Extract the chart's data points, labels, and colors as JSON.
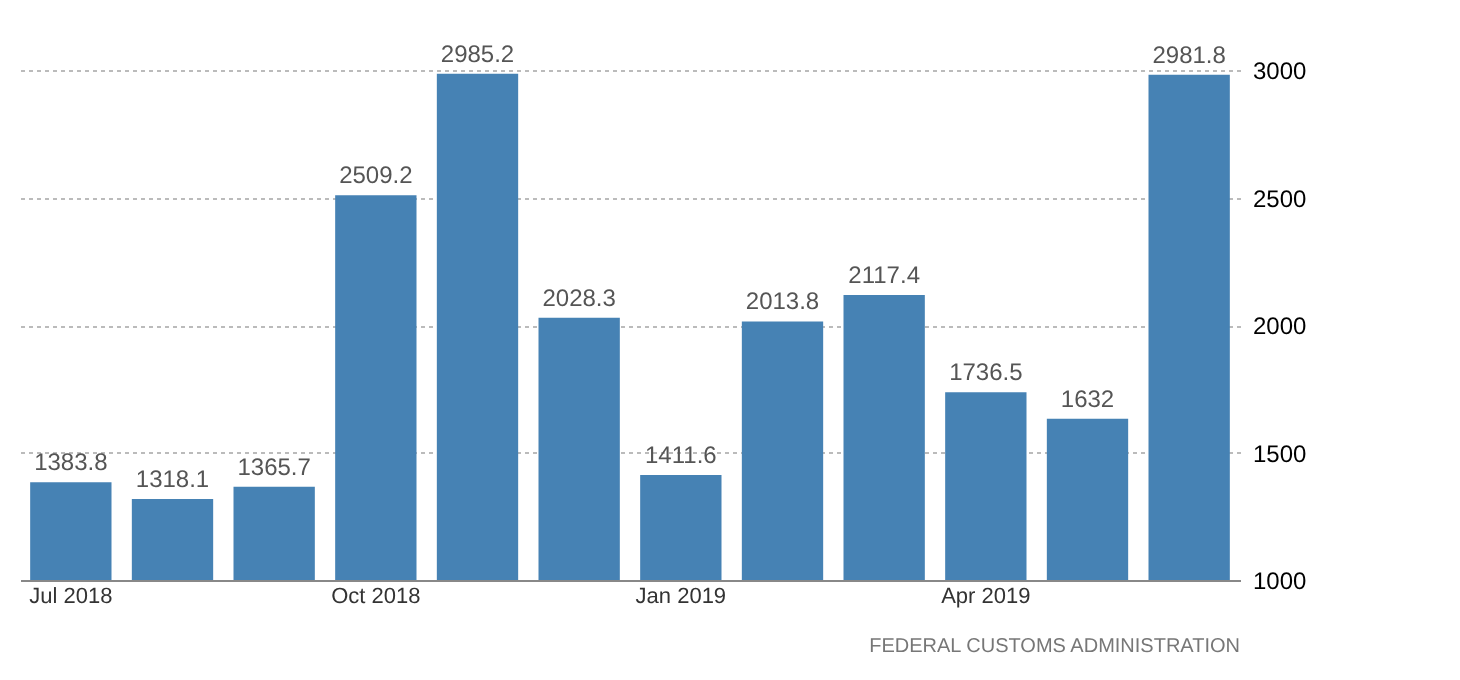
{
  "chart_data": {
    "type": "bar",
    "categories": [
      "Jul 2018",
      null,
      null,
      "Oct 2018",
      null,
      null,
      "Jan 2019",
      null,
      null,
      "Apr 2019",
      null,
      null
    ],
    "values": [
      1383.8,
      1318.1,
      1365.7,
      2509.2,
      2985.2,
      2028.3,
      1411.6,
      2013.8,
      2117.4,
      1736.5,
      1632,
      2981.8
    ],
    "color": "#4682b4",
    "ylim": [
      1000,
      3000
    ],
    "yticks": [
      1000,
      1500,
      2000,
      2500,
      3000
    ],
    "grid": "y",
    "data_labels": true,
    "annotations": [
      "FEDERAL CUSTOMS ADMINISTRATION"
    ]
  }
}
